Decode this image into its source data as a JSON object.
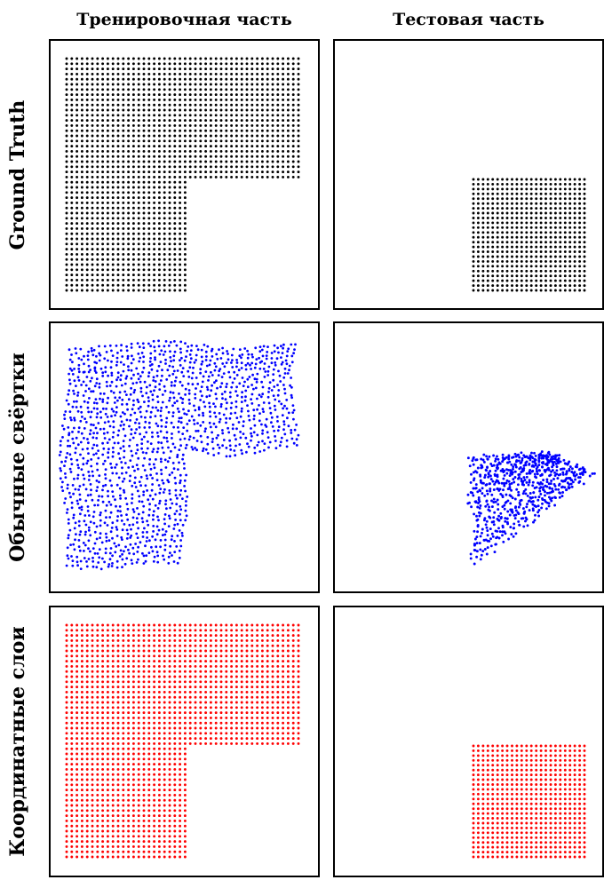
{
  "columns": [
    "Тренировочная часть",
    "Тестовая часть"
  ],
  "rows": [
    {
      "label": "Ground Truth",
      "color": "#000000",
      "style": "grid"
    },
    {
      "label": "Обычные свёртки",
      "color": "#0000ff",
      "style": "noisy"
    },
    {
      "label": "Координатные слои",
      "color": "#ff0000",
      "style": "grid"
    }
  ],
  "shapes": {
    "train": "L-shape",
    "test": "square"
  }
}
